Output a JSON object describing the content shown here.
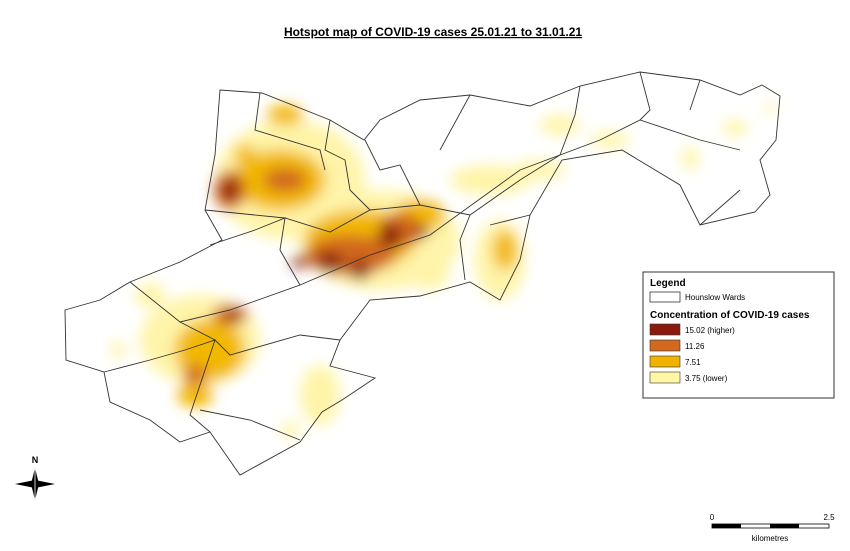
{
  "title": "Hotspot map of COVID-19 cases 25.01.21 to 31.01.21",
  "legend": {
    "title": "Legend",
    "wards": "Hounslow Wards",
    "subtitle": "Concentration of COVID-19 cases",
    "items": [
      {
        "label": "15.02 (higher)",
        "color": "#8b1a0e"
      },
      {
        "label": "11.26",
        "color": "#d2691e"
      },
      {
        "label": " 7.51",
        "color": "#f0b400"
      },
      {
        "label": "3.75 (lower)",
        "color": "#fff6a8"
      }
    ]
  },
  "north": "N",
  "scale": {
    "start": "0",
    "end": "2.5",
    "unit": "kilometres"
  }
}
